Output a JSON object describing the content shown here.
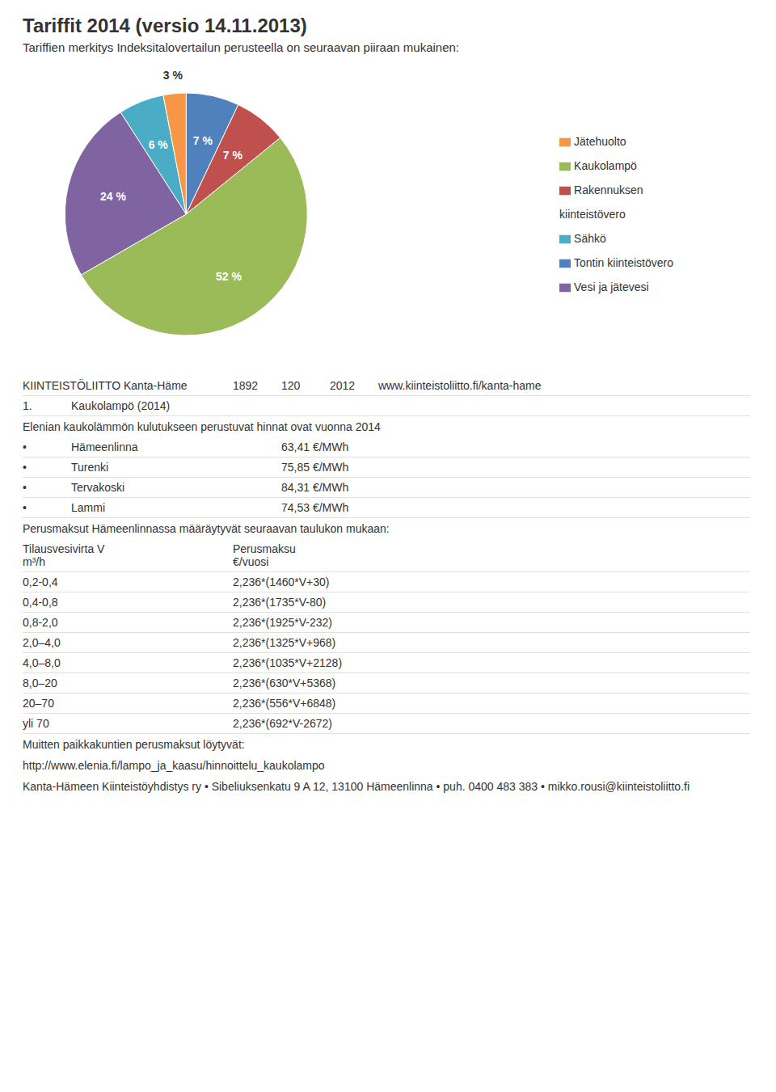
{
  "chart_data": {
    "type": "pie",
    "title": "Tariffit 2014 (versio 14.11.2013)",
    "subtitle": "Tariffien merkitys Indeksitalovertailun perusteella on seuraavan piiraan mukainen:",
    "categories": [
      "Tontin kiinteistövero",
      "Rakennuksen\nkiinteistövero",
      "Kaukolampö",
      "Vesi ja jätevesi",
      "Sähkö",
      "Jätehuolto"
    ],
    "values": [
      7,
      7,
      52,
      24,
      6,
      3
    ],
    "value_labels": [
      "7 %",
      "7 %",
      "52 %",
      "24 %",
      "6 %",
      "3 %"
    ],
    "colors": [
      "#4f81bd",
      "#c0504d",
      "#9bbb59",
      "#8064a2",
      "#4bacc6",
      "#f79646"
    ],
    "data_labels": true,
    "legend": "right",
    "annotations": [
      [
        "KIINTEISTÖLIITTO Kanta-Häme",
        "1892",
        "120",
        "2012",
        "www.kiinteistoliitto.fi/kanta-hame"
      ],
      [
        "1.",
        "Kaukolampö (2014)"
      ],
      "Elenian kaukolämmön kulutukseen perustuvat hinnat ovat vuonna 2014",
      [
        "•",
        "Hämeenlinna",
        "63,41 €/MWh"
      ],
      [
        "•",
        "Turenki",
        "75,85 €/MWh"
      ],
      [
        "•",
        "Tervakoski",
        "84,31 €/MWh"
      ],
      [
        "•",
        "Lammi",
        "74,53 €/MWh"
      ],
      "Perusmaksut Hämeenlinnassa määräytyvät seuraavan taulukon mukaan:",
      [
        "Tilausvesivirta V\nm³/h",
        "Perusmaksu\n€/vuosi"
      ],
      [
        "0,2-0,4",
        "2,236*(1460*V+30)"
      ],
      [
        "0,4-0,8",
        "2,236*(1735*V-80)"
      ],
      [
        "0,8-2,0",
        "2,236*(1925*V-232)"
      ],
      [
        "2,0–4,0",
        "2,236*(1325*V+968)"
      ],
      [
        "4,0–8,0",
        "2,236*(1035*V+2128)"
      ],
      [
        "8,0–20",
        "2,236*(630*V+5368)"
      ],
      [
        "20–70",
        "2,236*(556*V+6848)"
      ],
      [
        "yli 70",
        "2,236*(692*V-2672)"
      ],
      "Muitten paikkakuntien perusmaksut löytyvät:",
      "http://www.elenia.fi/lampo_ja_kaasu/hinnoittelu_kaukolampo",
      "Kanta-Hämeen Kiinteistöyhdistys ry  •  Sibeliuksenkatu 9 A 12, 13100 Hämeenlinna  •  puh. 0400 483 383  •  mikko.rousi@kiinteistoliitto.fi"
    ]
  }
}
